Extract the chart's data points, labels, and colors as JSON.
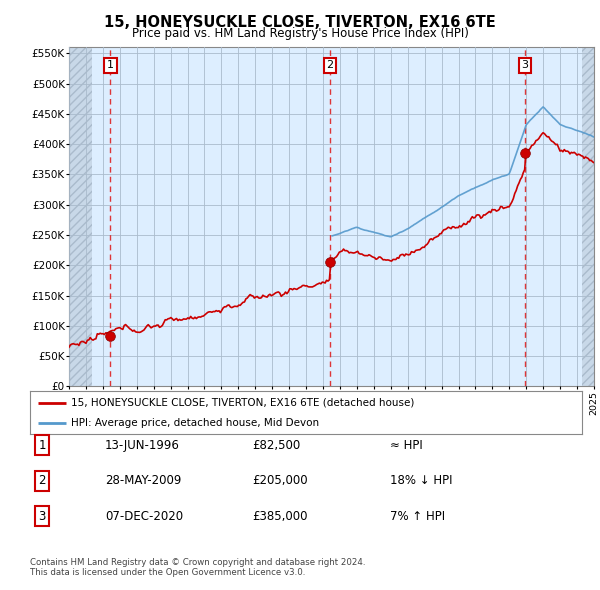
{
  "title": "15, HONEYSUCKLE CLOSE, TIVERTON, EX16 6TE",
  "subtitle": "Price paid vs. HM Land Registry's House Price Index (HPI)",
  "ylim": [
    0,
    560000
  ],
  "yticks": [
    0,
    50000,
    100000,
    150000,
    200000,
    250000,
    300000,
    350000,
    400000,
    450000,
    500000,
    550000
  ],
  "ytick_labels": [
    "£0",
    "£50K",
    "£100K",
    "£150K",
    "£200K",
    "£250K",
    "£300K",
    "£350K",
    "£400K",
    "£450K",
    "£500K",
    "£550K"
  ],
  "xmin": 1994.0,
  "xmax": 2025.0,
  "chart_bg_color": "#ddeeff",
  "hpi_color": "#5599cc",
  "price_color": "#cc0000",
  "dot_color": "#cc0000",
  "vline_color": "#dd2222",
  "marker_box_color": "#cc0000",
  "sale1_x": 1996.45,
  "sale1_y": 82500,
  "sale2_x": 2009.41,
  "sale2_y": 205000,
  "sale3_x": 2020.92,
  "sale3_y": 385000,
  "hpi_start_x": 2009.5,
  "legend_text1": "15, HONEYSUCKLE CLOSE, TIVERTON, EX16 6TE (detached house)",
  "legend_text2": "HPI: Average price, detached house, Mid Devon",
  "table_rows": [
    [
      "1",
      "13-JUN-1996",
      "£82,500",
      "≈ HPI"
    ],
    [
      "2",
      "28-MAY-2009",
      "£205,000",
      "18% ↓ HPI"
    ],
    [
      "3",
      "07-DEC-2020",
      "£385,000",
      "7% ↑ HPI"
    ]
  ],
  "footer": "Contains HM Land Registry data © Crown copyright and database right 2024.\nThis data is licensed under the Open Government Licence v3.0.",
  "bg_color": "#ffffff",
  "grid_color": "#aabbcc",
  "hatch_color": "#bbccdd"
}
